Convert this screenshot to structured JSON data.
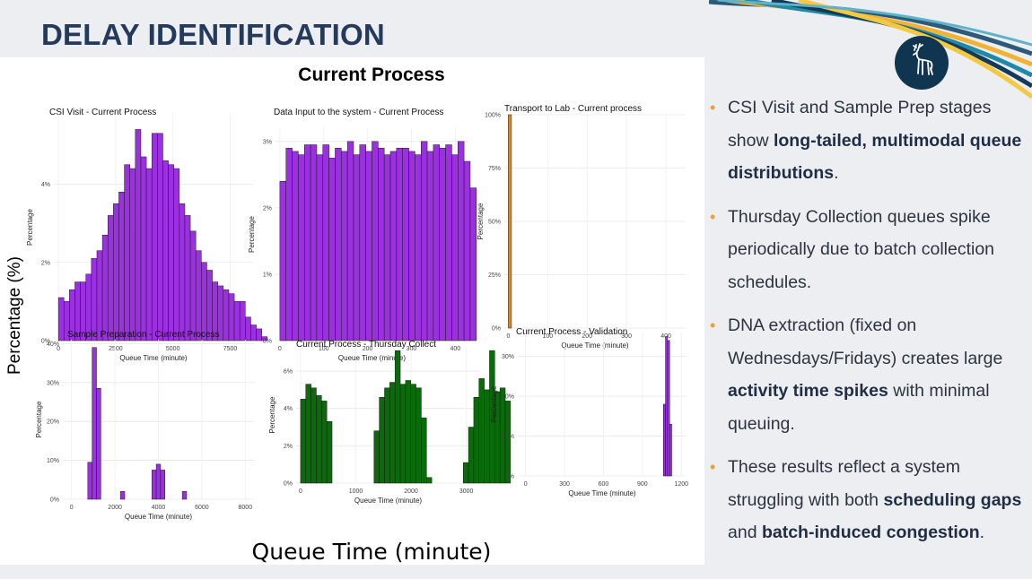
{
  "slide": {
    "title": "DELAY IDENTIFICATION"
  },
  "logo": {
    "icon": "stag-crest-icon",
    "color": "#0f3550"
  },
  "figure": {
    "title": "Current Process",
    "shared_ylabel": "Percentage (%)",
    "shared_xlabel": "Queue Time (minute)"
  },
  "chart_data": [
    {
      "type": "bar",
      "title": "CSI Visit - Current Process",
      "xlabel": "Queue Time (minute)",
      "ylabel": "Percentage",
      "color": "#9b30e0",
      "xlim": [
        -200,
        8500
      ],
      "ylim": [
        0,
        5.8
      ],
      "xticks": [
        0,
        2500,
        5000,
        7500
      ],
      "xtick_labels": [
        "0",
        "2500",
        "5000",
        "7500"
      ],
      "yticks": [
        0,
        2,
        4
      ],
      "ytick_labels": [
        "0%",
        "2%",
        "4%"
      ],
      "bin_start": 0,
      "bin_width": 240,
      "values": [
        1.1,
        1.0,
        1.3,
        1.5,
        1.5,
        1.7,
        2.1,
        2.3,
        2.7,
        3.2,
        3.5,
        3.8,
        4.5,
        4.4,
        5.4,
        4.7,
        4.4,
        5.3,
        5.3,
        4.6,
        4.5,
        4.4,
        3.5,
        3.2,
        2.8,
        2.3,
        2.0,
        1.8,
        1.5,
        1.4,
        1.3,
        1.2,
        1.0,
        1.0,
        0.6,
        0.4,
        0.3,
        0.1
      ]
    },
    {
      "type": "bar",
      "title": "Data Input to the system - Current Process",
      "xlabel": "Queue Time (minute)",
      "ylabel": "Percentage",
      "color": "#9b30e0",
      "xlim": [
        -10,
        430
      ],
      "ylim": [
        0,
        3.2
      ],
      "xticks": [
        0,
        100,
        200,
        300,
        400
      ],
      "xtick_labels": [
        "0",
        "100",
        "200",
        "300",
        "400"
      ],
      "yticks": [
        0,
        1,
        2,
        3
      ],
      "ytick_labels": [
        "0%",
        "1%",
        "2%",
        "3%"
      ],
      "bin_start": 0,
      "bin_width": 14,
      "values": [
        2.4,
        2.9,
        2.85,
        2.8,
        2.95,
        2.95,
        2.8,
        2.95,
        2.75,
        2.9,
        2.85,
        3.0,
        2.8,
        2.95,
        2.85,
        3.0,
        2.9,
        2.8,
        2.85,
        2.9,
        2.9,
        2.85,
        2.8,
        3.0,
        2.85,
        2.95,
        2.9,
        2.95,
        2.8,
        3.0,
        2.7,
        2.3
      ]
    },
    {
      "type": "bar",
      "title": "Transport to Lab - Current process",
      "xlabel": "Queue Time (minute)",
      "ylabel": "Percentage",
      "color": "#e08a1e",
      "xlim": [
        -10,
        450
      ],
      "ylim": [
        0,
        100
      ],
      "xticks": [
        0,
        100,
        200,
        300,
        400
      ],
      "xtick_labels": [
        "0",
        "100",
        "200",
        "300",
        "400"
      ],
      "yticks": [
        0,
        25,
        50,
        75,
        100
      ],
      "ytick_labels": [
        "0%",
        "25%",
        "50%",
        "75%",
        "100%"
      ],
      "bin_start": 0,
      "bin_width": 8,
      "values": [
        100
      ]
    },
    {
      "type": "bar",
      "title": "Sample Preparation - Current Process",
      "xlabel": "Queue Time (minute)",
      "ylabel": "Percentage",
      "color": "#9b30e0",
      "xlim": [
        -400,
        8400
      ],
      "ylim": [
        0,
        41
      ],
      "xticks": [
        0,
        2000,
        4000,
        6000,
        8000
      ],
      "xtick_labels": [
        "0",
        "2000",
        "4000",
        "6000",
        "8000"
      ],
      "yticks": [
        0,
        10,
        20,
        30,
        40
      ],
      "ytick_labels": [
        "0%",
        "10%",
        "20%",
        "30%",
        "40%"
      ],
      "bars": [
        {
          "x": 750,
          "w": 200,
          "v": 9.5
        },
        {
          "x": 950,
          "w": 200,
          "v": 39
        },
        {
          "x": 1150,
          "w": 200,
          "v": 28.5
        },
        {
          "x": 2250,
          "w": 200,
          "v": 2
        },
        {
          "x": 3700,
          "w": 200,
          "v": 7.5
        },
        {
          "x": 3900,
          "w": 200,
          "v": 9
        },
        {
          "x": 4100,
          "w": 200,
          "v": 7.5
        },
        {
          "x": 5100,
          "w": 200,
          "v": 2
        }
      ]
    },
    {
      "type": "bar",
      "title": "Current Process - Thursday Collect",
      "xlabel": "Queue Time (minute)",
      "ylabel": "Percentage",
      "color": "#0a6b0a",
      "xlim": [
        -80,
        3250
      ],
      "ylim": [
        0,
        7.3
      ],
      "xticks": [
        0,
        1000,
        2000,
        3000
      ],
      "xtick_labels": [
        "0",
        "1000",
        "2000",
        "3000"
      ],
      "yticks": [
        0,
        2,
        4,
        6
      ],
      "ytick_labels": [
        "0%",
        "2%",
        "4%",
        "6%"
      ],
      "bin_start": 0,
      "bin_width": 95,
      "values": [
        4.5,
        5.3,
        5.1,
        4.7,
        4.4,
        3.3,
        0,
        0,
        0,
        0,
        0,
        0,
        0,
        0,
        2.8,
        4.6,
        5.1,
        5.4,
        7.1,
        5.3,
        5.5,
        5.3,
        5.1,
        3.5,
        0.3,
        0,
        0,
        0,
        0,
        0,
        0,
        1.1,
        3.0,
        4.6,
        5.6,
        5.0,
        7.1,
        4.9,
        5.1,
        4.4
      ]
    },
    {
      "type": "bar",
      "title": "Current Process - Validation",
      "xlabel": "Queue Time (minute)",
      "ylabel": "Percentage",
      "color": "#9b30e0",
      "xlim": [
        -60,
        1240
      ],
      "ylim": [
        0,
        36
      ],
      "xticks": [
        0,
        300,
        600,
        900,
        1200
      ],
      "xtick_labels": [
        "0",
        "300",
        "600",
        "900",
        "1200"
      ],
      "yticks": [
        0,
        10,
        20,
        30
      ],
      "ytick_labels": [
        "0%",
        "10%",
        "20%",
        "30%"
      ],
      "bars": [
        {
          "x": 1062,
          "w": 16,
          "v": 18
        },
        {
          "x": 1078,
          "w": 16,
          "v": 35
        },
        {
          "x": 1094,
          "w": 16,
          "v": 34
        },
        {
          "x": 1110,
          "w": 16,
          "v": 13
        }
      ]
    }
  ],
  "bullets": [
    {
      "pre": "CSI Visit and Sample Prep stages show ",
      "b1": "long-tailed, multimodal queue distributions",
      "mid": ".",
      "b2": "",
      "post": ""
    },
    {
      "pre": "Thursday Collection queues spike periodically due to batch collection schedules.",
      "b1": "",
      "mid": "",
      "b2": "",
      "post": ""
    },
    {
      "pre": "DNA extraction (fixed on Wednesdays/Fridays) creates large ",
      "b1": "activity time spikes",
      "mid": " with minimal queuing.",
      "b2": "",
      "post": ""
    },
    {
      "pre": "These results reflect a system struggling with both ",
      "b1": "scheduling gaps",
      "mid": " and ",
      "b2": "batch-induced congestion",
      "post": "."
    }
  ]
}
